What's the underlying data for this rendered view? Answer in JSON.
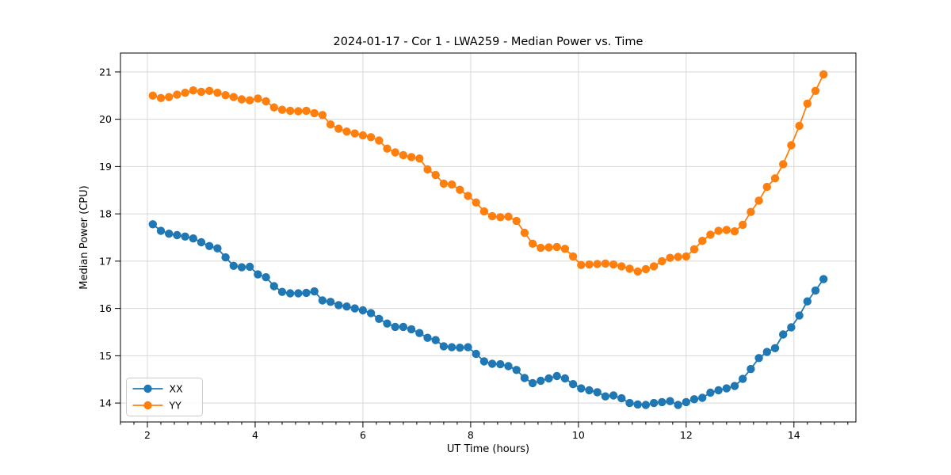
{
  "chart_data": {
    "type": "line",
    "title": "2024-01-17 - Cor 1 - LWA259 - Median Power vs. Time",
    "xlabel": "UT Time (hours)",
    "ylabel": "Median Power (CPU)",
    "xlim": [
      1.5,
      15.15
    ],
    "ylim": [
      13.6,
      21.4
    ],
    "x_major_ticks": [
      2,
      4,
      6,
      8,
      10,
      12,
      14
    ],
    "x_minor_step": 0.25,
    "y_major_ticks": [
      14,
      15,
      16,
      17,
      18,
      19,
      20,
      21
    ],
    "grid": true,
    "grid_color": "#d8d8d8",
    "legend_position": "lower left",
    "marker": "o",
    "x": [
      2.1,
      2.25,
      2.4,
      2.55,
      2.7,
      2.85,
      3.0,
      3.15,
      3.3,
      3.45,
      3.6,
      3.75,
      3.9,
      4.05,
      4.2,
      4.35,
      4.5,
      4.65,
      4.8,
      4.95,
      5.1,
      5.25,
      5.4,
      5.55,
      5.7,
      5.85,
      6.0,
      6.15,
      6.3,
      6.45,
      6.6,
      6.75,
      6.9,
      7.05,
      7.2,
      7.35,
      7.5,
      7.65,
      7.8,
      7.95,
      8.1,
      8.25,
      8.4,
      8.55,
      8.7,
      8.85,
      9.0,
      9.15,
      9.3,
      9.45,
      9.6,
      9.75,
      9.9,
      10.05,
      10.2,
      10.35,
      10.5,
      10.65,
      10.8,
      10.95,
      11.1,
      11.25,
      11.4,
      11.55,
      11.7,
      11.85,
      12.0,
      12.15,
      12.3,
      12.45,
      12.6,
      12.75,
      12.9,
      13.05,
      13.2,
      13.35,
      13.5,
      13.65,
      13.8,
      13.95,
      14.1,
      14.25,
      14.4,
      14.55
    ],
    "series": [
      {
        "name": "XX",
        "color": "#1f77b4",
        "values": [
          17.78,
          17.64,
          17.58,
          17.55,
          17.52,
          17.48,
          17.4,
          17.32,
          17.27,
          17.08,
          16.9,
          16.87,
          16.88,
          16.72,
          16.66,
          16.47,
          16.35,
          16.32,
          16.32,
          16.33,
          16.36,
          16.17,
          16.14,
          16.07,
          16.04,
          16.0,
          15.96,
          15.9,
          15.78,
          15.68,
          15.61,
          15.61,
          15.56,
          15.48,
          15.38,
          15.33,
          15.2,
          15.18,
          15.17,
          15.18,
          15.04,
          14.88,
          14.83,
          14.82,
          14.78,
          14.7,
          14.53,
          14.42,
          14.47,
          14.52,
          14.57,
          14.52,
          14.4,
          14.31,
          14.27,
          14.23,
          14.14,
          14.16,
          14.1,
          14.0,
          13.97,
          13.96,
          14.0,
          14.02,
          14.04,
          13.96,
          14.02,
          14.08,
          14.11,
          14.22,
          14.27,
          14.31,
          14.36,
          14.51,
          14.72,
          14.95,
          15.08,
          15.16,
          15.45,
          15.6,
          15.85,
          16.15,
          16.38,
          16.62
        ]
      },
      {
        "name": "YY",
        "color": "#ff7f0e",
        "values": [
          20.5,
          20.45,
          20.47,
          20.52,
          20.56,
          20.61,
          20.58,
          20.6,
          20.56,
          20.51,
          20.47,
          20.42,
          20.4,
          20.44,
          20.38,
          20.25,
          20.2,
          20.18,
          20.17,
          20.18,
          20.13,
          20.09,
          19.89,
          19.8,
          19.74,
          19.7,
          19.66,
          19.62,
          19.55,
          19.38,
          19.3,
          19.24,
          19.2,
          19.17,
          18.94,
          18.82,
          18.64,
          18.62,
          18.51,
          18.38,
          18.24,
          18.05,
          17.95,
          17.93,
          17.94,
          17.85,
          17.6,
          17.37,
          17.28,
          17.29,
          17.3,
          17.26,
          17.1,
          16.92,
          16.93,
          16.94,
          16.95,
          16.93,
          16.89,
          16.84,
          16.78,
          16.83,
          16.89,
          17.0,
          17.07,
          17.09,
          17.1,
          17.25,
          17.43,
          17.56,
          17.64,
          17.66,
          17.63,
          17.77,
          18.04,
          18.28,
          18.57,
          18.75,
          19.05,
          19.45,
          19.86,
          20.33,
          20.6,
          20.95
        ]
      }
    ]
  }
}
